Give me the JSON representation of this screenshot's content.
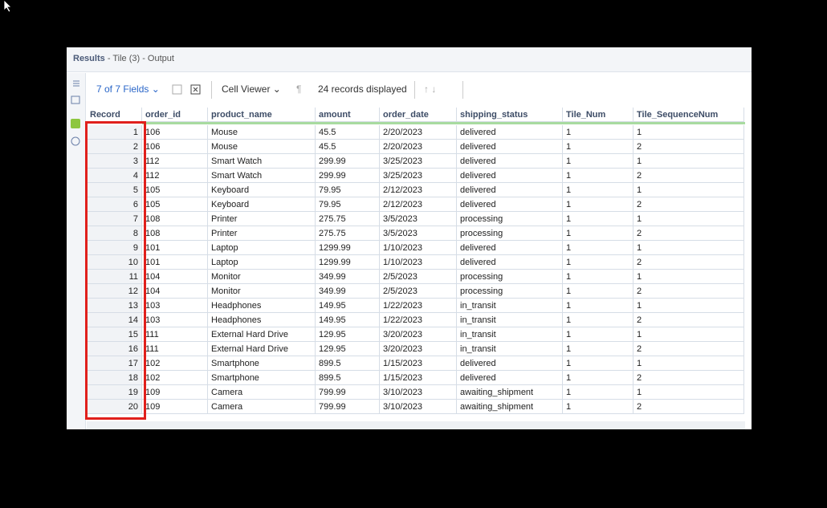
{
  "window": {
    "title": "Results",
    "subtitle": "- Tile (3) - Output"
  },
  "toolbar": {
    "fields": "7 of 7 Fields",
    "viewer": "Cell Viewer",
    "records": "24 records displayed"
  },
  "table": {
    "columns": [
      "Record",
      "order_id",
      "product_name",
      "amount",
      "order_date",
      "shipping_status",
      "Tile_Num",
      "Tile_SequenceNum"
    ],
    "rows": [
      [
        "1",
        "106",
        "Mouse",
        "45.5",
        "2/20/2023",
        "delivered",
        "1",
        "1"
      ],
      [
        "2",
        "106",
        "Mouse",
        "45.5",
        "2/20/2023",
        "delivered",
        "1",
        "2"
      ],
      [
        "3",
        "112",
        "Smart Watch",
        "299.99",
        "3/25/2023",
        "delivered",
        "1",
        "1"
      ],
      [
        "4",
        "112",
        "Smart Watch",
        "299.99",
        "3/25/2023",
        "delivered",
        "1",
        "2"
      ],
      [
        "5",
        "105",
        "Keyboard",
        "79.95",
        "2/12/2023",
        "delivered",
        "1",
        "1"
      ],
      [
        "6",
        "105",
        "Keyboard",
        "79.95",
        "2/12/2023",
        "delivered",
        "1",
        "2"
      ],
      [
        "7",
        "108",
        "Printer",
        "275.75",
        "3/5/2023",
        "processing",
        "1",
        "1"
      ],
      [
        "8",
        "108",
        "Printer",
        "275.75",
        "3/5/2023",
        "processing",
        "1",
        "2"
      ],
      [
        "9",
        "101",
        "Laptop",
        "1299.99",
        "1/10/2023",
        "delivered",
        "1",
        "1"
      ],
      [
        "10",
        "101",
        "Laptop",
        "1299.99",
        "1/10/2023",
        "delivered",
        "1",
        "2"
      ],
      [
        "11",
        "104",
        "Monitor",
        "349.99",
        "2/5/2023",
        "processing",
        "1",
        "1"
      ],
      [
        "12",
        "104",
        "Monitor",
        "349.99",
        "2/5/2023",
        "processing",
        "1",
        "2"
      ],
      [
        "13",
        "103",
        "Headphones",
        "149.95",
        "1/22/2023",
        "in_transit",
        "1",
        "1"
      ],
      [
        "14",
        "103",
        "Headphones",
        "149.95",
        "1/22/2023",
        "in_transit",
        "1",
        "2"
      ],
      [
        "15",
        "111",
        "External Hard Drive",
        "129.95",
        "3/20/2023",
        "in_transit",
        "1",
        "1"
      ],
      [
        "16",
        "111",
        "External Hard Drive",
        "129.95",
        "3/20/2023",
        "in_transit",
        "1",
        "2"
      ],
      [
        "17",
        "102",
        "Smartphone",
        "899.5",
        "1/15/2023",
        "delivered",
        "1",
        "1"
      ],
      [
        "18",
        "102",
        "Smartphone",
        "899.5",
        "1/15/2023",
        "delivered",
        "1",
        "2"
      ],
      [
        "19",
        "109",
        "Camera",
        "799.99",
        "3/10/2023",
        "awaiting_shipment",
        "1",
        "1"
      ],
      [
        "20",
        "109",
        "Camera",
        "799.99",
        "3/10/2023",
        "awaiting_shipment",
        "1",
        "2"
      ]
    ]
  }
}
